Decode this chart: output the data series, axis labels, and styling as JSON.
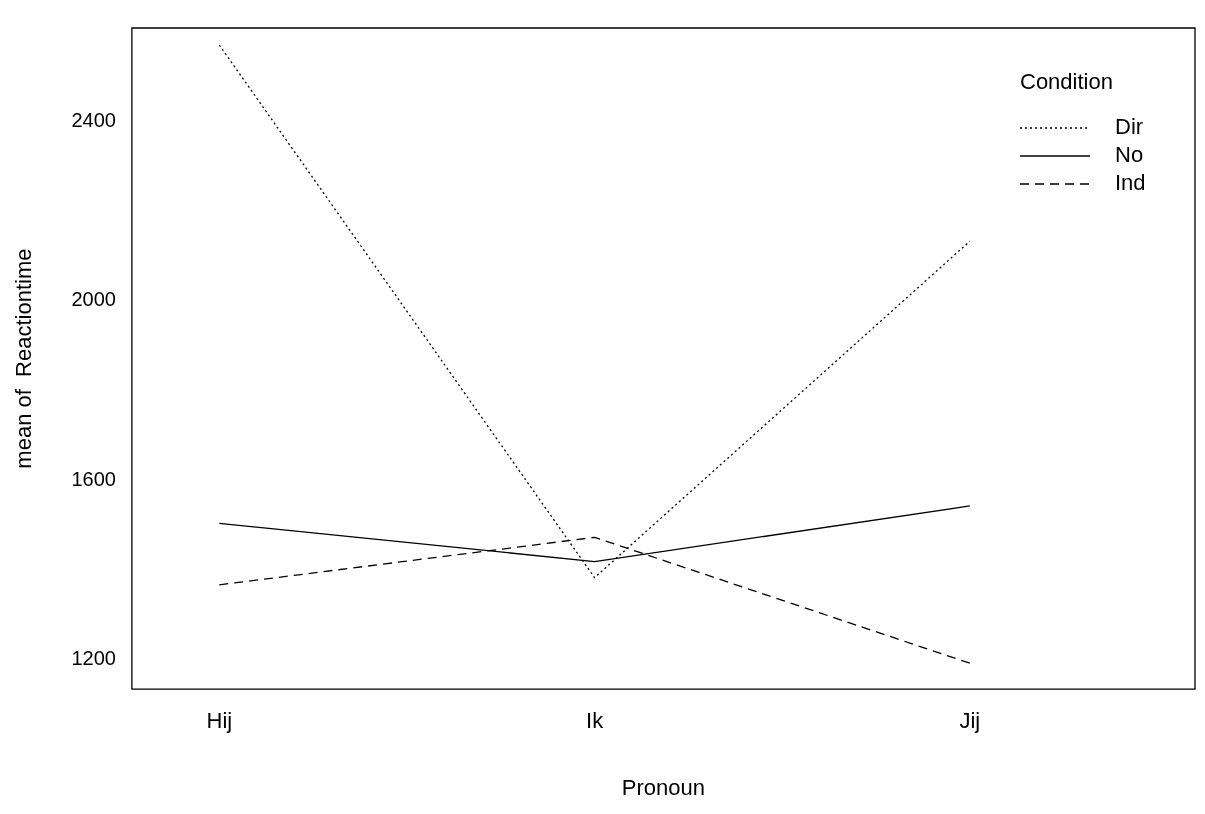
{
  "chart_data": {
    "type": "line",
    "xlabel": "Pronoun",
    "ylabel": "mean of  Reactiontime",
    "categories": [
      "Hij",
      "Ik",
      "Jij"
    ],
    "series": [
      {
        "name": "Dir",
        "color": "#000000",
        "line_style": "dotted",
        "values": [
          2571,
          1382,
          2133
        ]
      },
      {
        "name": "No",
        "color": "#000000",
        "line_style": "solid",
        "values": [
          1503,
          1418,
          1542
        ]
      },
      {
        "name": "Ind",
        "color": "#000000",
        "line_style": "dashed",
        "values": [
          1366,
          1472,
          1191
        ]
      }
    ],
    "ylim": [
      1133,
      2609
    ],
    "yticks": [
      1200,
      1600,
      2000,
      2400
    ],
    "grid": false,
    "marker": "none",
    "legend": "top right",
    "legend_title": "Condition"
  }
}
